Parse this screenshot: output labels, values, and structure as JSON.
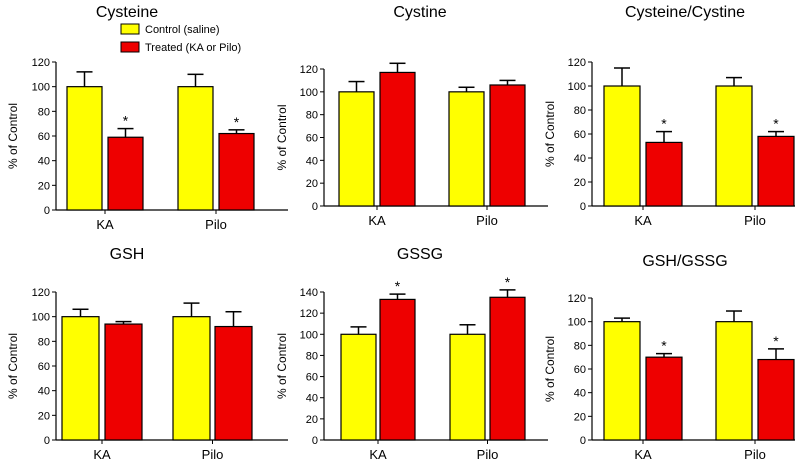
{
  "legend": {
    "control_label": "Control (saline)",
    "treated_label": "Treated (KA or Pilo)",
    "control_color": "#ffff00",
    "treated_color": "#ee0000"
  },
  "chart_data": [
    {
      "type": "bar",
      "title": "Cysteine",
      "ylabel": "% of Control",
      "categories": [
        "KA",
        "Pilo"
      ],
      "ylim": [
        0,
        120
      ],
      "yticks": [
        0,
        20,
        40,
        60,
        80,
        100,
        120
      ],
      "series": [
        {
          "name": "Control (saline)",
          "values": [
            100,
            100
          ],
          "errors": [
            12,
            10
          ]
        },
        {
          "name": "Treated (KA or Pilo)",
          "values": [
            59,
            62
          ],
          "errors": [
            7,
            3
          ]
        }
      ],
      "significant": [
        [
          false,
          true
        ],
        [
          false,
          true
        ]
      ],
      "significance_marker": "*"
    },
    {
      "type": "bar",
      "title": "Cystine",
      "ylabel": "% of Control",
      "categories": [
        "KA",
        "Pilo"
      ],
      "ylim": [
        0,
        120
      ],
      "yticks": [
        0,
        20,
        40,
        60,
        80,
        100,
        120
      ],
      "series": [
        {
          "name": "Control (saline)",
          "values": [
            100,
            100
          ],
          "errors": [
            9,
            4
          ]
        },
        {
          "name": "Treated (KA or Pilo)",
          "values": [
            117,
            106
          ],
          "errors": [
            8,
            4
          ]
        }
      ],
      "significant": [
        [
          false,
          false
        ],
        [
          false,
          false
        ]
      ],
      "significance_marker": "*"
    },
    {
      "type": "bar",
      "title": "Cysteine/Cystine",
      "ylabel": "% of Control",
      "categories": [
        "KA",
        "Pilo"
      ],
      "ylim": [
        0,
        120
      ],
      "yticks": [
        0,
        20,
        40,
        60,
        80,
        100,
        120
      ],
      "series": [
        {
          "name": "Control (saline)",
          "values": [
            100,
            100
          ],
          "errors": [
            15,
            7
          ]
        },
        {
          "name": "Treated (KA or Pilo)",
          "values": [
            53,
            58
          ],
          "errors": [
            9,
            4
          ]
        }
      ],
      "significant": [
        [
          false,
          true
        ],
        [
          false,
          true
        ]
      ],
      "significance_marker": "*"
    },
    {
      "type": "bar",
      "title": "GSH",
      "ylabel": "% of Control",
      "categories": [
        "KA",
        "Pilo"
      ],
      "ylim": [
        0,
        120
      ],
      "yticks": [
        0,
        20,
        40,
        60,
        80,
        100,
        120
      ],
      "series": [
        {
          "name": "Control (saline)",
          "values": [
            100,
            100
          ],
          "errors": [
            6,
            11
          ]
        },
        {
          "name": "Treated (KA or Pilo)",
          "values": [
            94,
            92
          ],
          "errors": [
            2,
            12
          ]
        }
      ],
      "significant": [
        [
          false,
          false
        ],
        [
          false,
          false
        ]
      ],
      "significance_marker": "*"
    },
    {
      "type": "bar",
      "title": "GSSG",
      "ylabel": "% of Control",
      "categories": [
        "KA",
        "Pilo"
      ],
      "ylim": [
        0,
        140
      ],
      "yticks": [
        0,
        20,
        40,
        60,
        80,
        100,
        120,
        140
      ],
      "series": [
        {
          "name": "Control (saline)",
          "values": [
            100,
            100
          ],
          "errors": [
            7,
            9
          ]
        },
        {
          "name": "Treated (KA or Pilo)",
          "values": [
            133,
            135
          ],
          "errors": [
            5,
            7
          ]
        }
      ],
      "significant": [
        [
          false,
          true
        ],
        [
          false,
          true
        ]
      ],
      "significance_marker": "*"
    },
    {
      "type": "bar",
      "title": "GSH/GSSG",
      "ylabel": "% of Control",
      "categories": [
        "KA",
        "Pilo"
      ],
      "ylim": [
        0,
        120
      ],
      "yticks": [
        0,
        20,
        40,
        60,
        80,
        100,
        120
      ],
      "series": [
        {
          "name": "Control (saline)",
          "values": [
            100,
            100
          ],
          "errors": [
            3,
            9
          ]
        },
        {
          "name": "Treated (KA or Pilo)",
          "values": [
            70,
            68
          ],
          "errors": [
            3,
            9
          ]
        }
      ],
      "significant": [
        [
          false,
          true
        ],
        [
          false,
          true
        ]
      ],
      "significance_marker": "*"
    }
  ]
}
